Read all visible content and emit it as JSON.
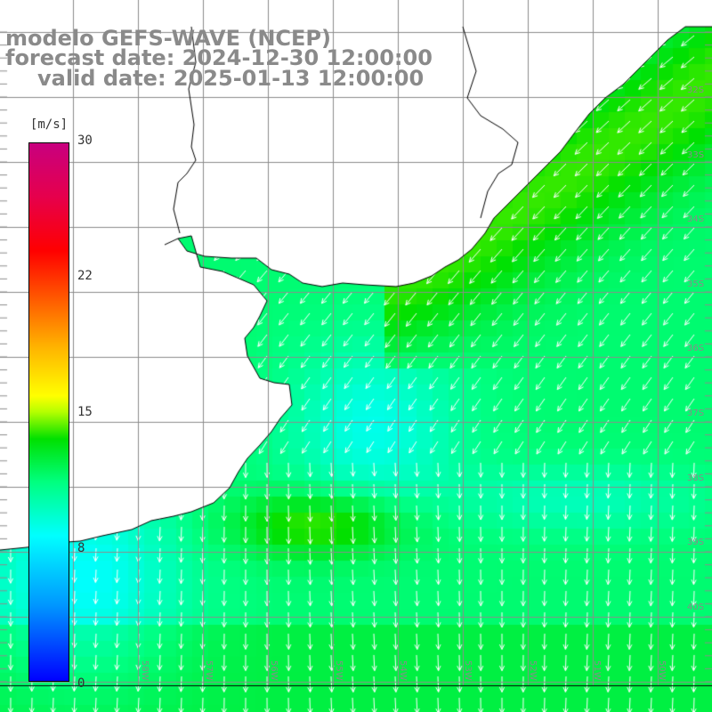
{
  "title": {
    "model": "modelo GEFS-WAVE (NCEP)",
    "forecast": "forecast date: 2024-12-30 12:00:00",
    "valid": "valid date: 2025-01-13 12:00:00"
  },
  "colorbar": {
    "unit": "[m/s]",
    "ticks": [
      "30",
      "22",
      "15",
      "8",
      "0"
    ],
    "tick_values": [
      30,
      22,
      15,
      8,
      0
    ],
    "min": 0,
    "max": 30,
    "colors": [
      "#0000ff",
      "#0096ff",
      "#00ffff",
      "#00ff7f",
      "#00e000",
      "#b4ff00",
      "#ffff00",
      "#ffb400",
      "#ff6400",
      "#ff0000",
      "#e6004c",
      "#c8007f"
    ]
  },
  "map": {
    "land_color": "#ffffff",
    "grid_color": "#8c8c8c",
    "vector_color": "#ffffff",
    "lat_labels": [
      "32S",
      "33S",
      "34S",
      "35S",
      "36S",
      "37S",
      "38S",
      "39S",
      "40S"
    ],
    "lon_labels": [
      "58W",
      "57W",
      "56W",
      "55W",
      "54W",
      "53W",
      "52W",
      "51W",
      "50W"
    ],
    "field": {
      "lon_range": [
        -60,
        -49
      ],
      "lat_range": [
        -41,
        -30.5
      ],
      "description_values_m_s": "wind speed mostly 5-12 m/s, strongest ~12 off southern Brazil coast"
    }
  }
}
